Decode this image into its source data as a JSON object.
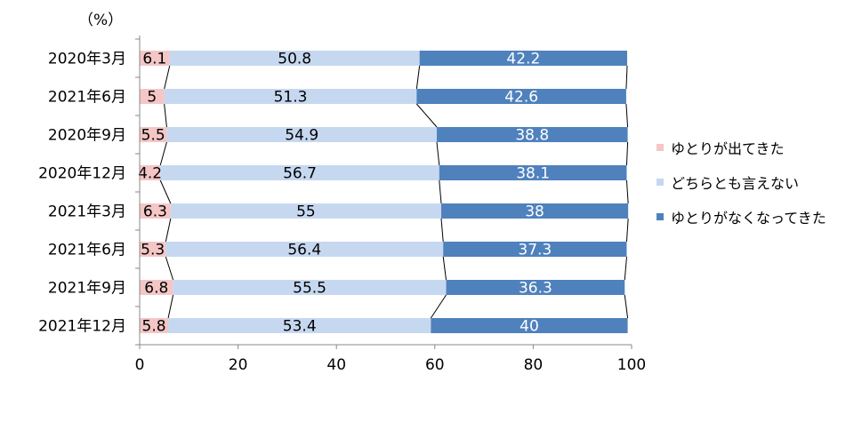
{
  "chart_data": {
    "type": "bar",
    "orientation": "horizontal",
    "stacked": true,
    "unit_label": "（%）",
    "categories": [
      "2020年3月",
      "2021年6月",
      "2020年9月",
      "2020年12月",
      "2021年3月",
      "2021年6月",
      "2021年9月",
      "2021年12月"
    ],
    "series": [
      {
        "name": "ゆとりが出てきた",
        "color": "#f4c6c6",
        "values": [
          6.1,
          5,
          5.5,
          4.2,
          6.3,
          5.3,
          6.8,
          5.8
        ]
      },
      {
        "name": "どちらとも言えない",
        "color": "#c6d8f0",
        "values": [
          50.8,
          51.3,
          54.9,
          56.7,
          55,
          56.4,
          55.5,
          53.4
        ]
      },
      {
        "name": "ゆとりがなくなってきた",
        "color": "#4f81bd",
        "values": [
          42.2,
          42.6,
          38.8,
          38.1,
          38,
          37.3,
          36.3,
          40
        ]
      }
    ],
    "xlim": [
      0,
      100
    ],
    "xticks": [
      "0",
      "20",
      "40",
      "60",
      "80",
      "100"
    ],
    "series_lines": true,
    "grid": false,
    "legend_position": "right"
  }
}
